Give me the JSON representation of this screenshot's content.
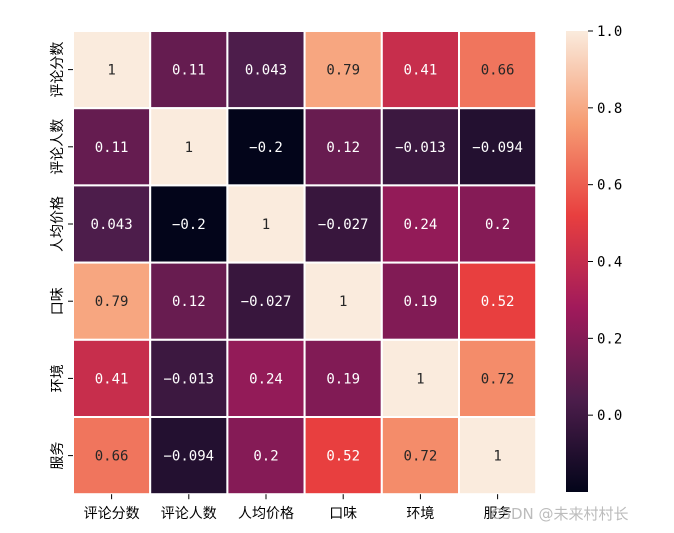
{
  "chart_data": {
    "type": "heatmap",
    "title": "",
    "xlabel": "",
    "ylabel": "",
    "row_labels": [
      "评论分数",
      "评论人数",
      "人均价格",
      "口味",
      "环境",
      "服务"
    ],
    "col_labels": [
      "评论分数",
      "评论人数",
      "人均价格",
      "口味",
      "环境",
      "服务"
    ],
    "values": [
      [
        1,
        0.11,
        0.043,
        0.79,
        0.41,
        0.66
      ],
      [
        0.11,
        1,
        -0.2,
        0.12,
        -0.013,
        -0.094
      ],
      [
        0.043,
        -0.2,
        1,
        -0.027,
        0.24,
        0.2
      ],
      [
        0.79,
        0.12,
        -0.027,
        1,
        0.19,
        0.52
      ],
      [
        0.41,
        -0.013,
        0.24,
        0.19,
        1,
        0.72
      ],
      [
        0.66,
        -0.094,
        0.2,
        0.52,
        0.72,
        1
      ]
    ],
    "annotations": [
      [
        "1",
        "0.11",
        "0.043",
        "0.79",
        "0.41",
        "0.66"
      ],
      [
        "0.11",
        "1",
        "−0.2",
        "0.12",
        "−0.013",
        "−0.094"
      ],
      [
        "0.043",
        "−0.2",
        "1",
        "−0.027",
        "0.24",
        "0.2"
      ],
      [
        "0.79",
        "0.12",
        "−0.027",
        "1",
        "0.19",
        "0.52"
      ],
      [
        "0.41",
        "−0.013",
        "0.24",
        "0.19",
        "1",
        "0.72"
      ],
      [
        "0.66",
        "−0.094",
        "0.2",
        "0.52",
        "0.72",
        "1"
      ]
    ],
    "colorbar": {
      "colormap": "rocket",
      "vmin": -0.2,
      "vmax": 1.0,
      "ticks": [
        0.0,
        0.2,
        0.4,
        0.6,
        0.8,
        1.0
      ],
      "tick_labels": [
        "0.0",
        "0.2",
        "0.4",
        "0.6",
        "0.8",
        "1.0"
      ],
      "colors": [
        "#03051a",
        "#4c1d4b",
        "#a11a5b",
        "#e83f3f",
        "#f69c73",
        "#faebdd"
      ]
    },
    "grid_line_color": "#ffffff"
  },
  "watermark": "CSDN @未来村村长"
}
